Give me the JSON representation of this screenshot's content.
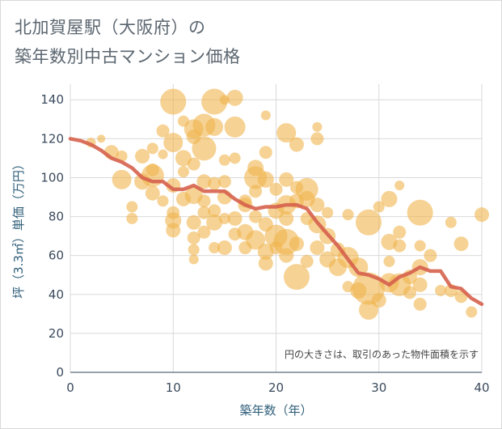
{
  "title": {
    "line1": "北加賀屋駅（大阪府）の",
    "line2": "築年数別中古マンション価格"
  },
  "colors": {
    "bubble": "#f0b44c",
    "line": "#d6604d",
    "grid": "#d9d9d9",
    "axis_text": "#3a4a5c"
  },
  "chart_data": {
    "type": "scatter",
    "title": "北加賀屋駅（大阪府）の築年数別中古マンション価格",
    "xlabel": "築年数（年）",
    "ylabel": "坪（3.3㎡）単価（万円）",
    "xlim": [
      0,
      40
    ],
    "ylim": [
      0,
      148
    ],
    "xticks": [
      0,
      10,
      20,
      30,
      40
    ],
    "yticks": [
      0,
      20,
      40,
      60,
      80,
      100,
      120,
      140
    ],
    "grid": true,
    "note": "円の大きさは、取引のあった物件面積を示す",
    "bubbles": [
      {
        "x": 2,
        "y": 118,
        "s": 6
      },
      {
        "x": 3,
        "y": 120,
        "s": 5
      },
      {
        "x": 4,
        "y": 113,
        "s": 9
      },
      {
        "x": 5,
        "y": 111,
        "s": 7
      },
      {
        "x": 5,
        "y": 99,
        "s": 12
      },
      {
        "x": 6,
        "y": 85,
        "s": 7
      },
      {
        "x": 6,
        "y": 79,
        "s": 7
      },
      {
        "x": 7,
        "y": 111,
        "s": 9
      },
      {
        "x": 7,
        "y": 98,
        "s": 10
      },
      {
        "x": 8,
        "y": 115,
        "s": 7
      },
      {
        "x": 8,
        "y": 104,
        "s": 8
      },
      {
        "x": 8,
        "y": 92,
        "s": 9
      },
      {
        "x": 8,
        "y": 101,
        "s": 14
      },
      {
        "x": 9,
        "y": 124,
        "s": 8
      },
      {
        "x": 9,
        "y": 112,
        "s": 6
      },
      {
        "x": 9,
        "y": 88,
        "s": 7
      },
      {
        "x": 10,
        "y": 139,
        "s": 16
      },
      {
        "x": 10,
        "y": 118,
        "s": 12
      },
      {
        "x": 10,
        "y": 96,
        "s": 9
      },
      {
        "x": 10,
        "y": 82,
        "s": 8
      },
      {
        "x": 10,
        "y": 78,
        "s": 10
      },
      {
        "x": 10,
        "y": 73,
        "s": 9
      },
      {
        "x": 11,
        "y": 129,
        "s": 7
      },
      {
        "x": 11,
        "y": 110,
        "s": 10
      },
      {
        "x": 11,
        "y": 103,
        "s": 7
      },
      {
        "x": 11,
        "y": 89,
        "s": 9
      },
      {
        "x": 12,
        "y": 125,
        "s": 12
      },
      {
        "x": 12,
        "y": 121,
        "s": 9
      },
      {
        "x": 12,
        "y": 107,
        "s": 8
      },
      {
        "x": 12,
        "y": 91,
        "s": 11
      },
      {
        "x": 12,
        "y": 77,
        "s": 9
      },
      {
        "x": 12,
        "y": 69,
        "s": 8
      },
      {
        "x": 12,
        "y": 58,
        "s": 6
      },
      {
        "x": 12,
        "y": 63,
        "s": 7
      },
      {
        "x": 13,
        "y": 127,
        "s": 14
      },
      {
        "x": 13,
        "y": 115,
        "s": 15
      },
      {
        "x": 13,
        "y": 98,
        "s": 9
      },
      {
        "x": 13,
        "y": 88,
        "s": 8
      },
      {
        "x": 13,
        "y": 72,
        "s": 8
      },
      {
        "x": 13,
        "y": 82,
        "s": 8
      },
      {
        "x": 14,
        "y": 139,
        "s": 16
      },
      {
        "x": 14,
        "y": 126,
        "s": 11
      },
      {
        "x": 14,
        "y": 97,
        "s": 8
      },
      {
        "x": 14,
        "y": 83,
        "s": 8
      },
      {
        "x": 14,
        "y": 77,
        "s": 10
      },
      {
        "x": 14,
        "y": 64,
        "s": 7
      },
      {
        "x": 15,
        "y": 140,
        "s": 6
      },
      {
        "x": 15,
        "y": 109,
        "s": 7
      },
      {
        "x": 15,
        "y": 98,
        "s": 8
      },
      {
        "x": 15,
        "y": 90,
        "s": 9
      },
      {
        "x": 15,
        "y": 79,
        "s": 7
      },
      {
        "x": 15,
        "y": 64,
        "s": 9
      },
      {
        "x": 16,
        "y": 141,
        "s": 10
      },
      {
        "x": 16,
        "y": 126,
        "s": 13
      },
      {
        "x": 16,
        "y": 110,
        "s": 7
      },
      {
        "x": 16,
        "y": 79,
        "s": 9
      },
      {
        "x": 16,
        "y": 71,
        "s": 8
      },
      {
        "x": 17,
        "y": 88,
        "s": 8
      },
      {
        "x": 17,
        "y": 86,
        "s": 9
      },
      {
        "x": 17,
        "y": 72,
        "s": 10
      },
      {
        "x": 17,
        "y": 64,
        "s": 8
      },
      {
        "x": 18,
        "y": 105,
        "s": 10
      },
      {
        "x": 18,
        "y": 100,
        "s": 14
      },
      {
        "x": 18,
        "y": 93,
        "s": 8
      },
      {
        "x": 18,
        "y": 80,
        "s": 8
      },
      {
        "x": 18,
        "y": 68,
        "s": 12
      },
      {
        "x": 19,
        "y": 132,
        "s": 6
      },
      {
        "x": 19,
        "y": 113,
        "s": 8
      },
      {
        "x": 19,
        "y": 99,
        "s": 10
      },
      {
        "x": 19,
        "y": 76,
        "s": 9
      },
      {
        "x": 19,
        "y": 62,
        "s": 10
      },
      {
        "x": 19,
        "y": 56,
        "s": 9
      },
      {
        "x": 20,
        "y": 94,
        "s": 8
      },
      {
        "x": 20,
        "y": 83,
        "s": 10
      },
      {
        "x": 20,
        "y": 70,
        "s": 14
      },
      {
        "x": 20,
        "y": 64,
        "s": 8
      },
      {
        "x": 21,
        "y": 123,
        "s": 12
      },
      {
        "x": 21,
        "y": 99,
        "s": 9
      },
      {
        "x": 21,
        "y": 86,
        "s": 12
      },
      {
        "x": 21,
        "y": 79,
        "s": 9
      },
      {
        "x": 21,
        "y": 67,
        "s": 16
      },
      {
        "x": 21,
        "y": 60,
        "s": 9
      },
      {
        "x": 22,
        "y": 117,
        "s": 9
      },
      {
        "x": 22,
        "y": 95,
        "s": 8
      },
      {
        "x": 22,
        "y": 88,
        "s": 9
      },
      {
        "x": 22,
        "y": 66,
        "s": 9
      },
      {
        "x": 22,
        "y": 49,
        "s": 16
      },
      {
        "x": 23,
        "y": 94,
        "s": 14
      },
      {
        "x": 23,
        "y": 89,
        "s": 10
      },
      {
        "x": 23,
        "y": 79,
        "s": 8
      },
      {
        "x": 23,
        "y": 57,
        "s": 8
      },
      {
        "x": 24,
        "y": 126,
        "s": 6
      },
      {
        "x": 24,
        "y": 120,
        "s": 8
      },
      {
        "x": 24,
        "y": 86,
        "s": 9
      },
      {
        "x": 24,
        "y": 76,
        "s": 11
      },
      {
        "x": 24,
        "y": 64,
        "s": 9
      },
      {
        "x": 25,
        "y": 82,
        "s": 7
      },
      {
        "x": 25,
        "y": 70,
        "s": 10
      },
      {
        "x": 25,
        "y": 58,
        "s": 10
      },
      {
        "x": 26,
        "y": 54,
        "s": 11
      },
      {
        "x": 26,
        "y": 63,
        "s": 9
      },
      {
        "x": 27,
        "y": 81,
        "s": 7
      },
      {
        "x": 27,
        "y": 59,
        "s": 13
      },
      {
        "x": 27,
        "y": 44,
        "s": 7
      },
      {
        "x": 28,
        "y": 54,
        "s": 12
      },
      {
        "x": 28,
        "y": 42,
        "s": 10
      },
      {
        "x": 29,
        "y": 77,
        "s": 16
      },
      {
        "x": 29,
        "y": 43,
        "s": 20
      },
      {
        "x": 29,
        "y": 32,
        "s": 12
      },
      {
        "x": 30,
        "y": 85,
        "s": 7
      },
      {
        "x": 30,
        "y": 37,
        "s": 9
      },
      {
        "x": 31,
        "y": 89,
        "s": 10
      },
      {
        "x": 31,
        "y": 67,
        "s": 10
      },
      {
        "x": 31,
        "y": 57,
        "s": 7
      },
      {
        "x": 31,
        "y": 46,
        "s": 12
      },
      {
        "x": 32,
        "y": 96,
        "s": 6
      },
      {
        "x": 32,
        "y": 72,
        "s": 8
      },
      {
        "x": 32,
        "y": 65,
        "s": 8
      },
      {
        "x": 32,
        "y": 45,
        "s": 14
      },
      {
        "x": 33,
        "y": 49,
        "s": 9
      },
      {
        "x": 33,
        "y": 41,
        "s": 8
      },
      {
        "x": 34,
        "y": 82,
        "s": 16
      },
      {
        "x": 34,
        "y": 65,
        "s": 7
      },
      {
        "x": 34,
        "y": 54,
        "s": 10
      },
      {
        "x": 34,
        "y": 45,
        "s": 9
      },
      {
        "x": 34,
        "y": 35,
        "s": 8
      },
      {
        "x": 35,
        "y": 60,
        "s": 8
      },
      {
        "x": 36,
        "y": 42,
        "s": 7
      },
      {
        "x": 37,
        "y": 77,
        "s": 7
      },
      {
        "x": 37,
        "y": 42,
        "s": 8
      },
      {
        "x": 38,
        "y": 66,
        "s": 9
      },
      {
        "x": 38,
        "y": 39,
        "s": 8
      },
      {
        "x": 39,
        "y": 31,
        "s": 7
      },
      {
        "x": 40,
        "y": 81,
        "s": 9
      }
    ],
    "trend": [
      {
        "x": 0,
        "y": 120
      },
      {
        "x": 1,
        "y": 119
      },
      {
        "x": 2,
        "y": 117
      },
      {
        "x": 3,
        "y": 114
      },
      {
        "x": 4,
        "y": 110
      },
      {
        "x": 5,
        "y": 108
      },
      {
        "x": 6,
        "y": 105
      },
      {
        "x": 7,
        "y": 100
      },
      {
        "x": 8,
        "y": 98
      },
      {
        "x": 9,
        "y": 98
      },
      {
        "x": 10,
        "y": 94
      },
      {
        "x": 11,
        "y": 94
      },
      {
        "x": 12,
        "y": 96
      },
      {
        "x": 13,
        "y": 93
      },
      {
        "x": 14,
        "y": 93
      },
      {
        "x": 15,
        "y": 93
      },
      {
        "x": 16,
        "y": 89
      },
      {
        "x": 17,
        "y": 86
      },
      {
        "x": 18,
        "y": 84
      },
      {
        "x": 19,
        "y": 85
      },
      {
        "x": 20,
        "y": 85
      },
      {
        "x": 21,
        "y": 86
      },
      {
        "x": 22,
        "y": 86
      },
      {
        "x": 23,
        "y": 84
      },
      {
        "x": 24,
        "y": 77
      },
      {
        "x": 25,
        "y": 71
      },
      {
        "x": 26,
        "y": 65
      },
      {
        "x": 27,
        "y": 58
      },
      {
        "x": 28,
        "y": 51
      },
      {
        "x": 29,
        "y": 50
      },
      {
        "x": 30,
        "y": 48
      },
      {
        "x": 31,
        "y": 45
      },
      {
        "x": 32,
        "y": 49
      },
      {
        "x": 33,
        "y": 51
      },
      {
        "x": 34,
        "y": 54
      },
      {
        "x": 35,
        "y": 52
      },
      {
        "x": 36,
        "y": 52
      },
      {
        "x": 37,
        "y": 44
      },
      {
        "x": 38,
        "y": 43
      },
      {
        "x": 39,
        "y": 38
      },
      {
        "x": 40,
        "y": 35
      }
    ]
  }
}
